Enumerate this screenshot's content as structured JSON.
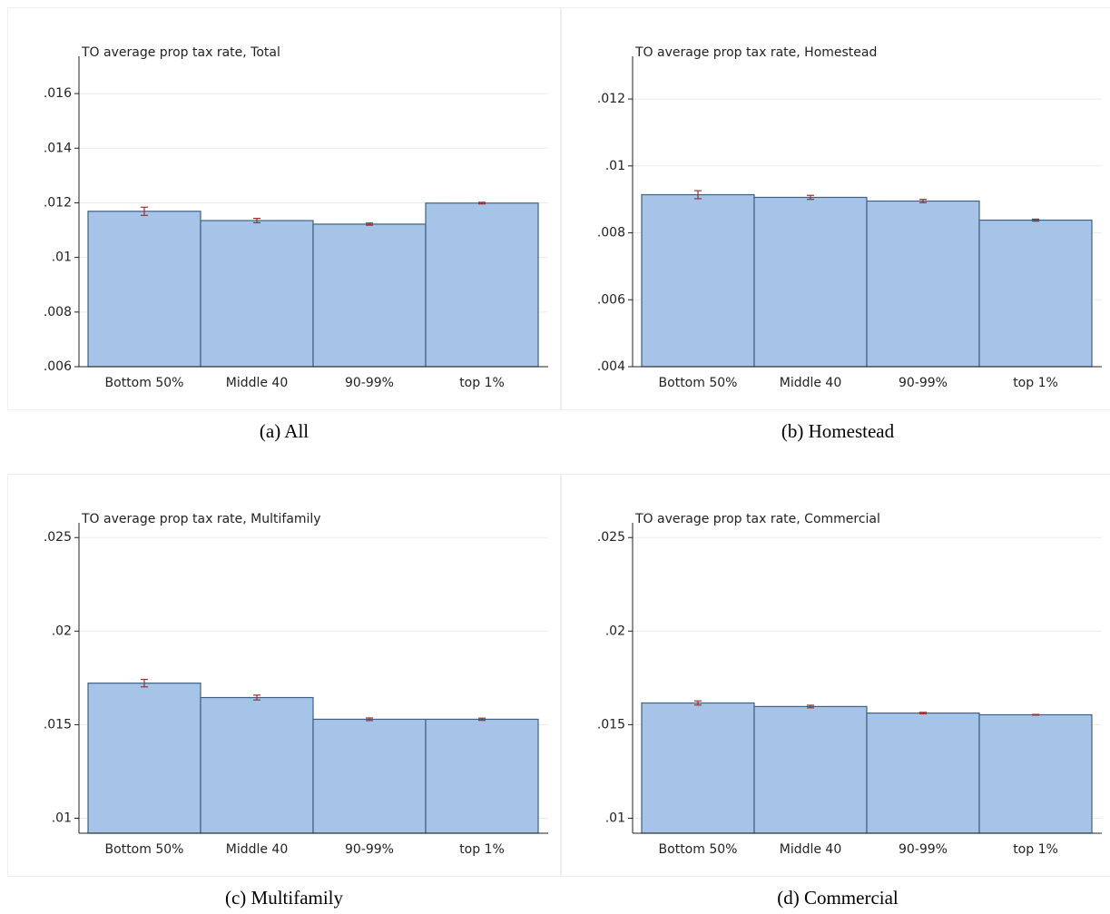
{
  "chart_data": [
    {
      "type": "bar",
      "title": "TO average prop tax rate, Total",
      "caption": "(a) All",
      "categories": [
        "Bottom 50%",
        "Middle 40",
        "90-99%",
        "top 1%"
      ],
      "values": [
        0.01169,
        0.01135,
        0.01122,
        0.01199
      ],
      "errors": [
        0.00015,
        8e-05,
        4e-05,
        3e-05
      ],
      "ylim": [
        0.006,
        0.0171
      ],
      "yticks": [
        {
          "value": 0.006,
          "label": ".006"
        },
        {
          "value": 0.008,
          "label": ".008"
        },
        {
          "value": 0.01,
          "label": ".01"
        },
        {
          "value": 0.012,
          "label": ".012"
        },
        {
          "value": 0.014,
          "label": ".014"
        },
        {
          "value": 0.016,
          "label": ".016"
        }
      ],
      "color": "#a6c3e8",
      "edge_color": "#3e6185",
      "error_color": "#a03030",
      "grid": true
    },
    {
      "type": "bar",
      "title": "TO average prop tax rate, Homestead",
      "caption": "(b) Homestead",
      "categories": [
        "Bottom 50%",
        "Middle 40",
        "90-99%",
        "top 1%"
      ],
      "values": [
        0.00914,
        0.00906,
        0.00895,
        0.00838
      ],
      "errors": [
        0.00012,
        6e-05,
        5e-05,
        3e-05
      ],
      "ylim": [
        0.004,
        0.01306
      ],
      "yticks": [
        {
          "value": 0.004,
          "label": ".004"
        },
        {
          "value": 0.006,
          "label": ".006"
        },
        {
          "value": 0.008,
          "label": ".008"
        },
        {
          "value": 0.01,
          "label": ".01"
        },
        {
          "value": 0.012,
          "label": ".012"
        }
      ],
      "color": "#a6c3e8",
      "edge_color": "#3e6185",
      "error_color": "#a03030",
      "grid": true
    },
    {
      "type": "bar",
      "title": "TO average prop tax rate, Multifamily",
      "caption": "(c) Multifamily",
      "categories": [
        "Bottom 50%",
        "Middle 40",
        "90-99%",
        "top 1%"
      ],
      "values": [
        0.01722,
        0.01645,
        0.01529,
        0.01529
      ],
      "errors": [
        0.0002,
        0.00013,
        7e-05,
        6e-05
      ],
      "ylim": [
        0.0092,
        0.0254
      ],
      "yticks": [
        {
          "value": 0.01,
          "label": ".01"
        },
        {
          "value": 0.015,
          "label": ".015"
        },
        {
          "value": 0.02,
          "label": ".02"
        },
        {
          "value": 0.025,
          "label": ".025"
        }
      ],
      "color": "#a6c3e8",
      "edge_color": "#3e6185",
      "error_color": "#a03030",
      "grid": true
    },
    {
      "type": "bar",
      "title": "TO average prop tax rate, Commercial",
      "caption": "(d) Commercial",
      "categories": [
        "Bottom 50%",
        "Middle 40",
        "90-99%",
        "top 1%"
      ],
      "values": [
        0.01616,
        0.01597,
        0.01562,
        0.01553
      ],
      "errors": [
        0.00011,
        7e-05,
        4e-05,
        2e-05
      ],
      "ylim": [
        0.0092,
        0.0254
      ],
      "yticks": [
        {
          "value": 0.01,
          "label": ".01"
        },
        {
          "value": 0.015,
          "label": ".015"
        },
        {
          "value": 0.02,
          "label": ".02"
        },
        {
          "value": 0.025,
          "label": ".025"
        }
      ],
      "color": "#a6c3e8",
      "edge_color": "#3e6185",
      "error_color": "#a03030",
      "grid": true
    }
  ]
}
